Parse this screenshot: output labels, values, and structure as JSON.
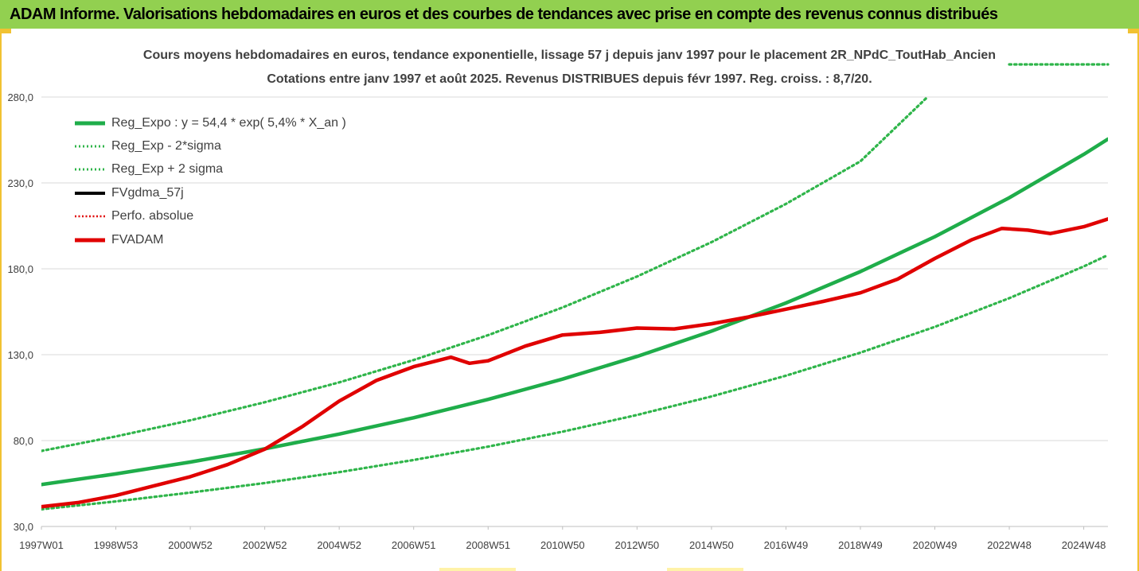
{
  "window": {
    "banner_title": "ADAM Informe. Valorisations hebdomadaires en euros et des courbes de tendances avec prise en compte des revenus connus distribués"
  },
  "colors": {
    "banner_bg": "#92d050",
    "frame": "#f1c232",
    "reg_expo": "#1fad4a",
    "sigma": "#2fb54a",
    "fvgdma": "#000000",
    "perfo": "#e00000",
    "fvadam": "#e00000",
    "grid": "#d9d9d9",
    "axis_text": "#404040"
  },
  "chart_data": {
    "type": "line",
    "title": "Cours moyens hebdomadaires en euros, tendance exponentielle, lissage 57 j depuis janv 1997 pour le placement 2R_NPdC_ToutHab_Ancien",
    "subtitle": "Cotations entre janv 1997 et août 2025. Revenus DISTRIBUES depuis févr 1997. Reg. croiss. : 8,7/20.",
    "xlabel": "",
    "ylabel": "",
    "ylim": [
      30,
      280
    ],
    "yticks": [
      "30,0",
      "80,0",
      "130,0",
      "180,0",
      "230,0",
      "280,0"
    ],
    "ytick_values": [
      30,
      80,
      130,
      180,
      230,
      280
    ],
    "xlim": [
      1997.0,
      2025.65
    ],
    "xticks": [
      "1997W01",
      "1998W53",
      "2000W52",
      "2002W52",
      "2004W52",
      "2006W51",
      "2008W51",
      "2010W50",
      "2012W50",
      "2014W50",
      "2016W49",
      "2018W49",
      "2020W49",
      "2022W48",
      "2024W48"
    ],
    "xtick_values": [
      1997.0,
      1999.0,
      2001.0,
      2003.0,
      2005.0,
      2007.0,
      2009.0,
      2011.0,
      2013.0,
      2015.0,
      2017.0,
      2019.0,
      2021.0,
      2023.0,
      2025.0
    ],
    "grid": "horizontal",
    "legend_position": "top-left",
    "series": [
      {
        "name": "Reg_Expo : y = 54,4 * exp( 5,4% *  X_an )",
        "style": "solid-thick",
        "color": "#1fad4a",
        "x": [
          1997.0,
          1999.0,
          2001.0,
          2003.0,
          2005.0,
          2007.0,
          2009.0,
          2011.0,
          2013.0,
          2015.0,
          2017.0,
          2019.0,
          2021.0,
          2023.0,
          2025.0,
          2025.65
        ],
        "y": [
          54.4,
          60.6,
          67.5,
          75.2,
          83.8,
          93.3,
          104.0,
          115.8,
          129.0,
          143.7,
          160.1,
          178.4,
          198.7,
          221.4,
          246.6,
          255.5
        ]
      },
      {
        "name": "Reg_Exp - 2*sigma",
        "style": "dotted",
        "color": "#2fb54a",
        "x": [
          1997.0,
          1999.0,
          2001.0,
          2003.0,
          2005.0,
          2007.0,
          2009.0,
          2011.0,
          2013.0,
          2015.0,
          2017.0,
          2019.0,
          2021.0,
          2023.0,
          2025.0,
          2025.65
        ],
        "y": [
          40.0,
          44.6,
          49.7,
          55.3,
          61.6,
          68.7,
          76.5,
          85.2,
          94.9,
          105.7,
          117.8,
          131.2,
          146.2,
          162.9,
          181.4,
          188.0
        ]
      },
      {
        "name": "Reg_Exp + 2 sigma",
        "style": "dotted",
        "color": "#2fb54a",
        "x": [
          1997.0,
          1999.0,
          2001.0,
          2003.0,
          2005.0,
          2007.0,
          2009.0,
          2011.0,
          2013.0,
          2015.0,
          2017.0,
          2019.0,
          2020.8
        ],
        "y": [
          74.0,
          82.4,
          91.8,
          102.3,
          113.9,
          126.9,
          141.4,
          157.5,
          175.5,
          195.5,
          217.8,
          242.6,
          280.0
        ]
      },
      {
        "name": "FVgdma_57j",
        "style": "solid-thick",
        "color": "#000000",
        "x": [],
        "y": []
      },
      {
        "name": "Perfo. absolue",
        "style": "dotted",
        "color": "#e00000",
        "x": [],
        "y": []
      },
      {
        "name": "FVADAM",
        "style": "solid-thick",
        "color": "#e00000",
        "x": [
          1997.0,
          1998.0,
          1999.0,
          2000.0,
          2001.0,
          2002.0,
          2003.0,
          2004.0,
          2005.0,
          2006.0,
          2007.0,
          2008.0,
          2008.5,
          2009.0,
          2010.0,
          2011.0,
          2012.0,
          2013.0,
          2014.0,
          2015.0,
          2016.0,
          2017.0,
          2018.0,
          2019.0,
          2020.0,
          2021.0,
          2022.0,
          2022.8,
          2023.5,
          2024.1,
          2025.0,
          2025.65
        ],
        "y": [
          41.5,
          44.0,
          48.0,
          53.5,
          59.0,
          66.0,
          75.0,
          88.0,
          103.0,
          115.0,
          123.0,
          128.5,
          125.0,
          126.5,
          135.0,
          141.5,
          143.0,
          145.5,
          145.0,
          148.0,
          152.0,
          156.5,
          161.0,
          166.0,
          174.0,
          186.0,
          197.0,
          203.5,
          202.5,
          200.5,
          204.5,
          209.0
        ]
      }
    ]
  }
}
